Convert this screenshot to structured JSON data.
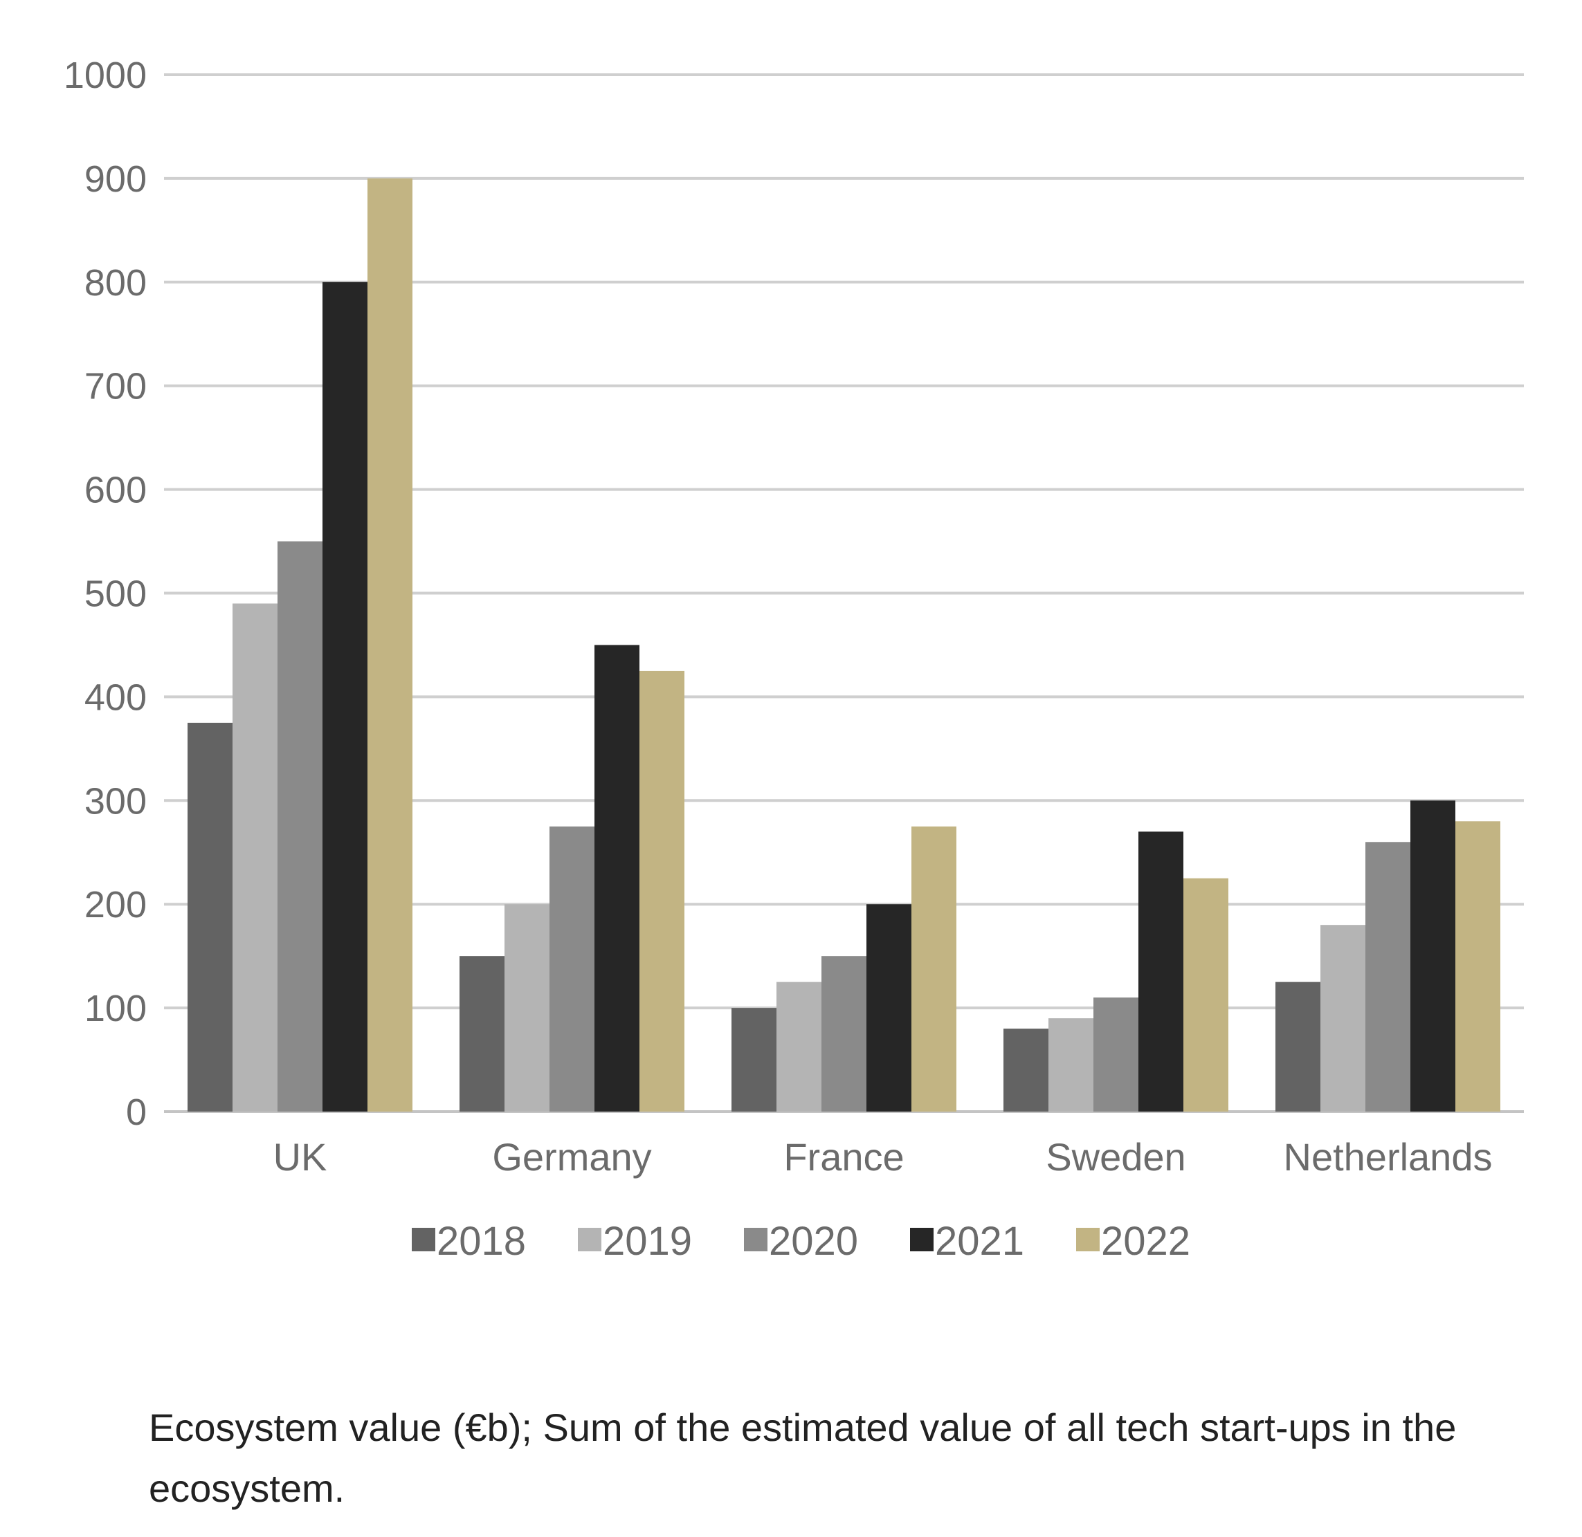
{
  "chart_data": {
    "type": "bar",
    "categories": [
      "UK",
      "Germany",
      "France",
      "Sweden",
      "Netherlands"
    ],
    "series": [
      {
        "name": "2018",
        "color": "#636363",
        "values": [
          375,
          150,
          100,
          80,
          125
        ]
      },
      {
        "name": "2019",
        "color": "#b4b4b4",
        "values": [
          490,
          200,
          125,
          90,
          180
        ]
      },
      {
        "name": "2020",
        "color": "#8a8a8a",
        "values": [
          550,
          275,
          150,
          110,
          260
        ]
      },
      {
        "name": "2021",
        "color": "#262626",
        "values": [
          800,
          450,
          200,
          270,
          300
        ]
      },
      {
        "name": "2022",
        "color": "#c2b483",
        "values": [
          900,
          425,
          275,
          225,
          280
        ]
      }
    ],
    "yticks": [
      "0",
      "100",
      "200",
      "300",
      "400",
      "500",
      "600",
      "700",
      "800",
      "900",
      "1000"
    ],
    "ylim": [
      0,
      1000
    ],
    "grid": true,
    "legend_position": "bottom",
    "title": "",
    "xlabel": "",
    "ylabel": ""
  },
  "caption": "Ecosystem value (€b); Sum of the estimated value of all tech start-ups in the ecosystem."
}
